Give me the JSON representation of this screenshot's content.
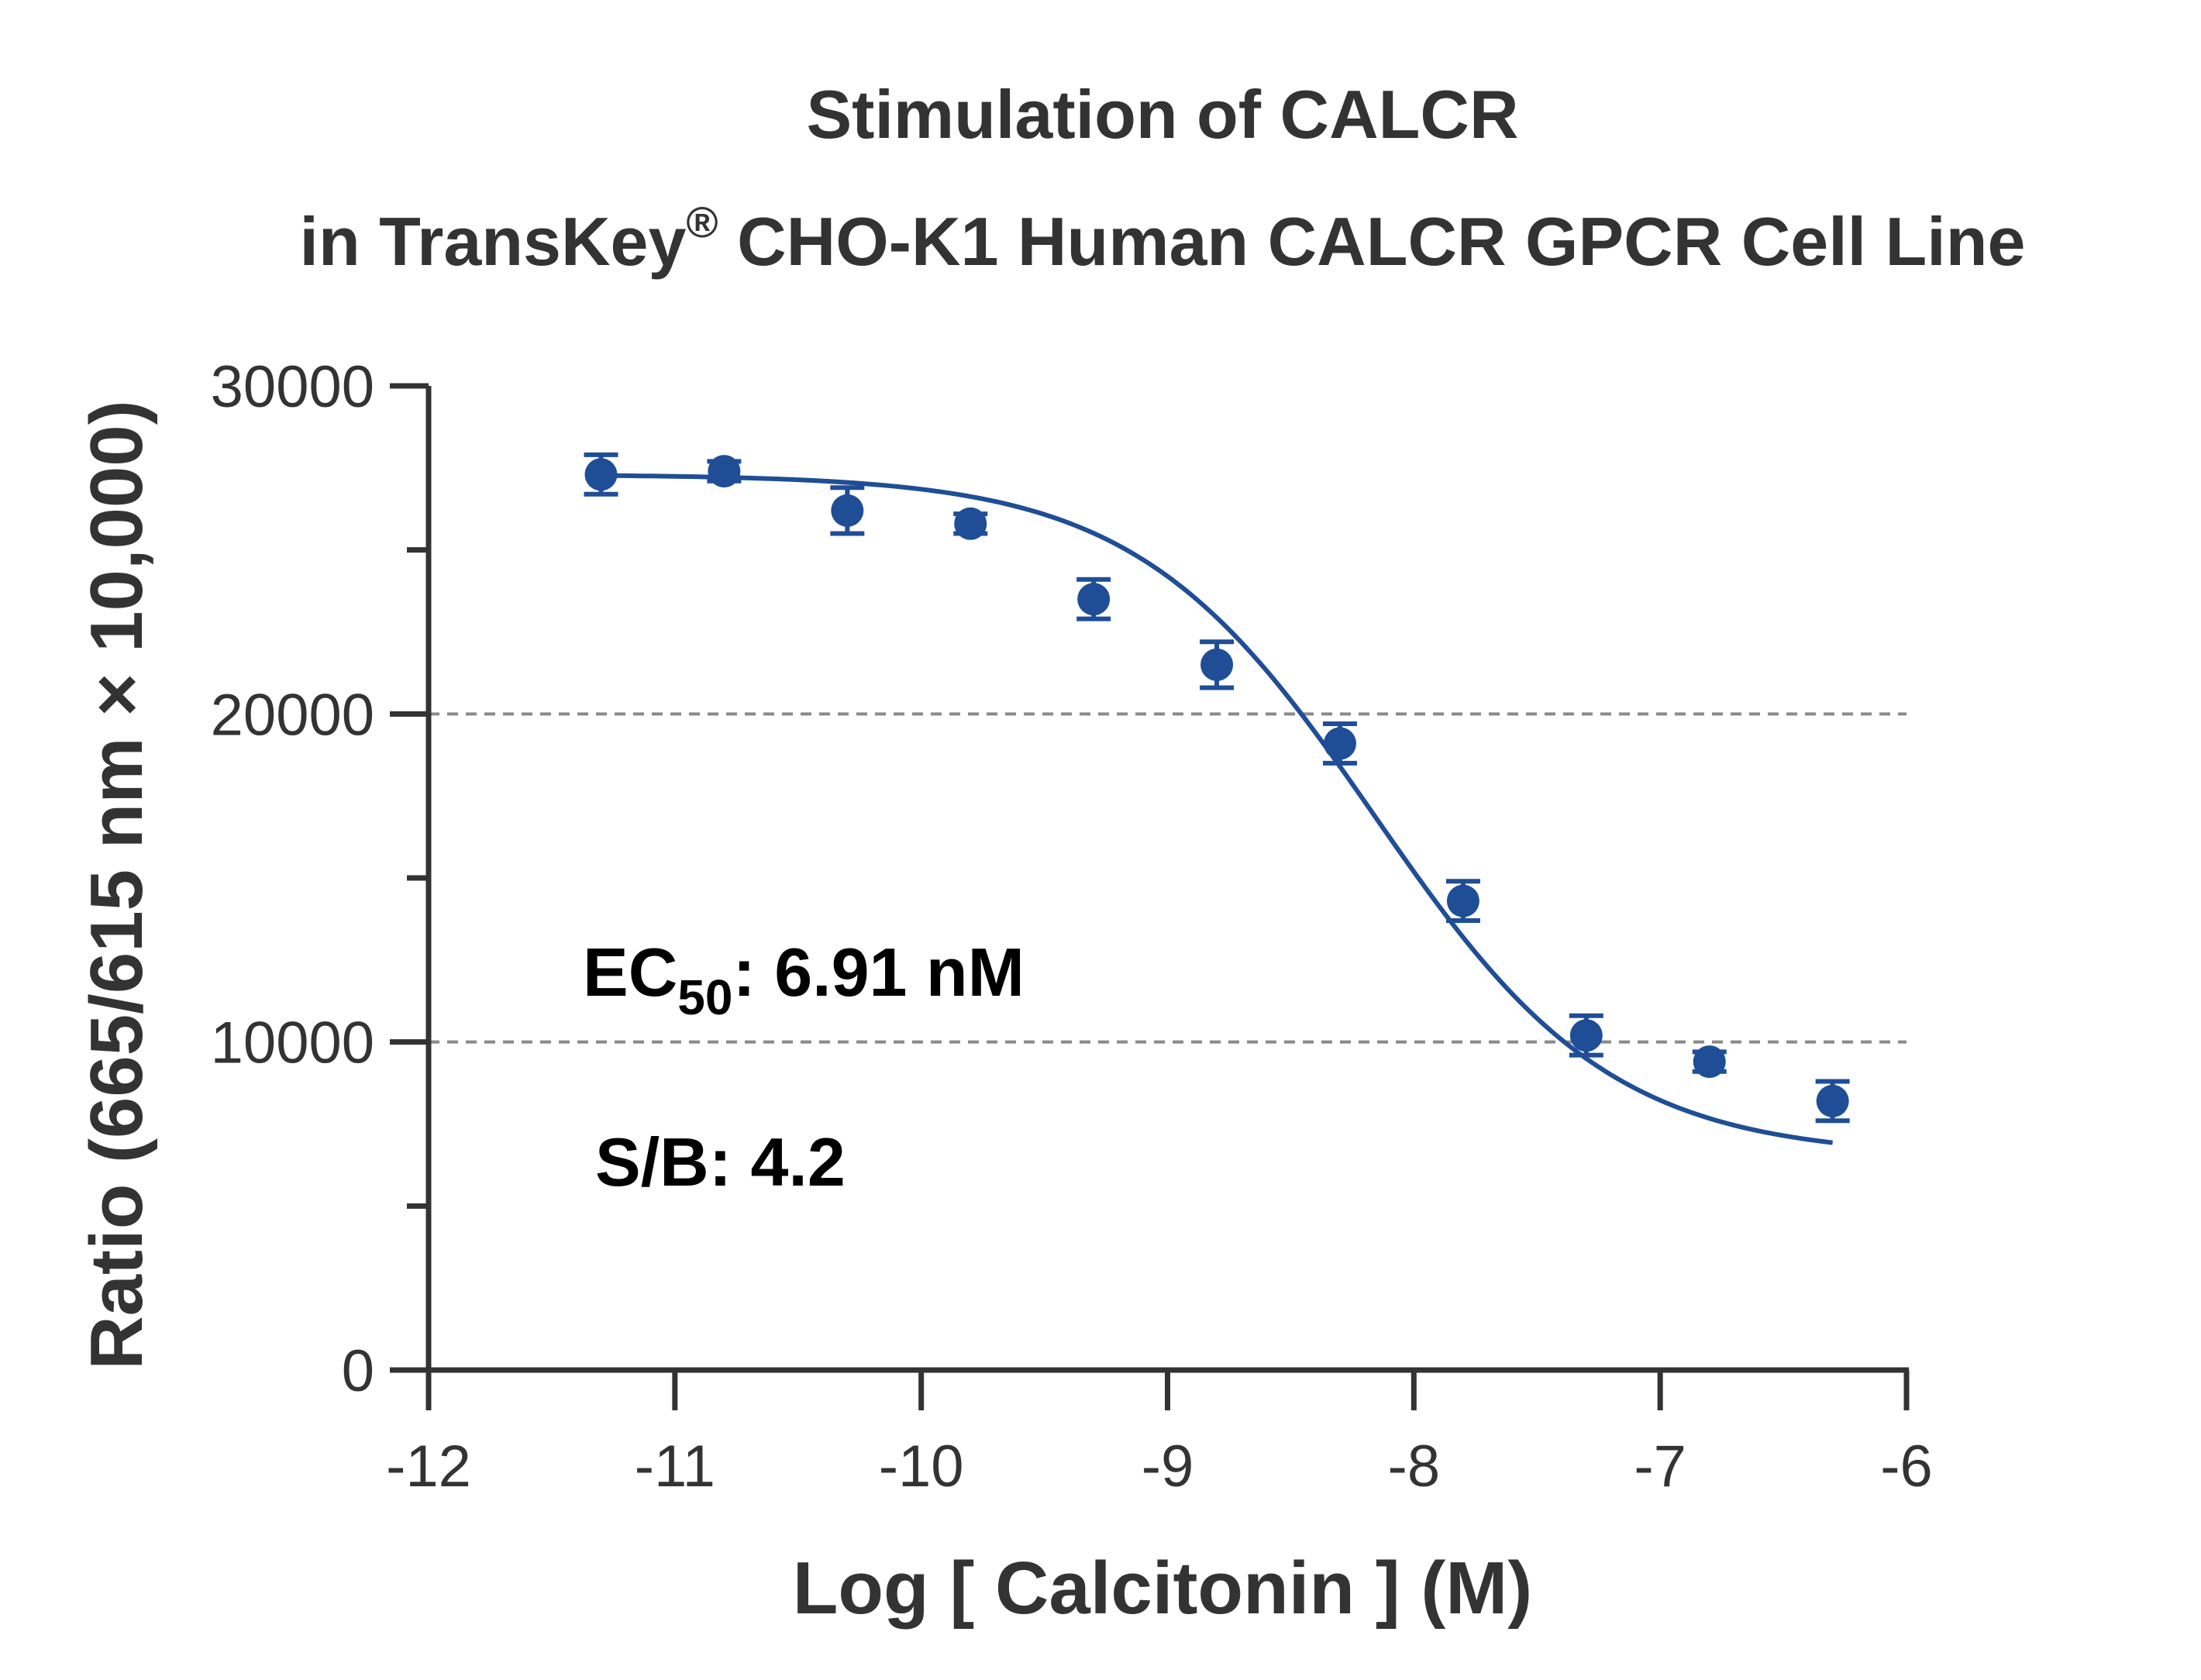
{
  "chart_data": {
    "type": "scatter",
    "title_line1": "Stimulation of  CALCR",
    "title_line2_prefix": "in TransKey",
    "title_line2_sup": "®",
    "title_line2_suffix": " CHO-K1 Human CALCR GPCR Cell Line",
    "xlabel": "Log [ Calcitonin ]  (M)",
    "ylabel": "Ratio (665/615 nm × 10,000)",
    "xlim": [
      -12,
      -6
    ],
    "ylim": [
      0,
      30000
    ],
    "x_ticks": [
      -12,
      -11,
      -10,
      -9,
      -8,
      -7,
      -6
    ],
    "x_tick_labels": [
      "-12",
      "-11",
      "-10",
      "-9",
      "-8",
      "-7",
      "-6"
    ],
    "y_ticks": [
      0,
      10000,
      20000,
      30000
    ],
    "y_tick_labels": [
      "0",
      "10000",
      "20000",
      "30000"
    ],
    "y_minor_ticks": [
      5000,
      15000,
      25000
    ],
    "grid": "dashed horizontal at 10000 and 20000",
    "color": "#1f4e96",
    "series": [
      {
        "x": [
          -11.3,
          -10.8,
          -10.3,
          -9.8,
          -9.3,
          -8.8,
          -8.3,
          -7.8,
          -7.3,
          -6.8,
          -6.3
        ],
        "y": [
          27300,
          27400,
          26200,
          25800,
          23500,
          21500,
          19100,
          14300,
          10200,
          9400,
          8200
        ],
        "error": [
          600,
          300,
          700,
          300,
          600,
          700,
          600,
          600,
          600,
          300,
          600
        ]
      }
    ],
    "fit": {
      "model": "four-parameter logistic",
      "top": 27300,
      "bottom": 6500,
      "log_ec50": -8.16,
      "hill": 0.9
    },
    "annotations": {
      "ec50_prefix": "EC",
      "ec50_sub": "50",
      "ec50_suffix": ": 6.91 nM",
      "sb": "S/B: 4.2"
    }
  }
}
